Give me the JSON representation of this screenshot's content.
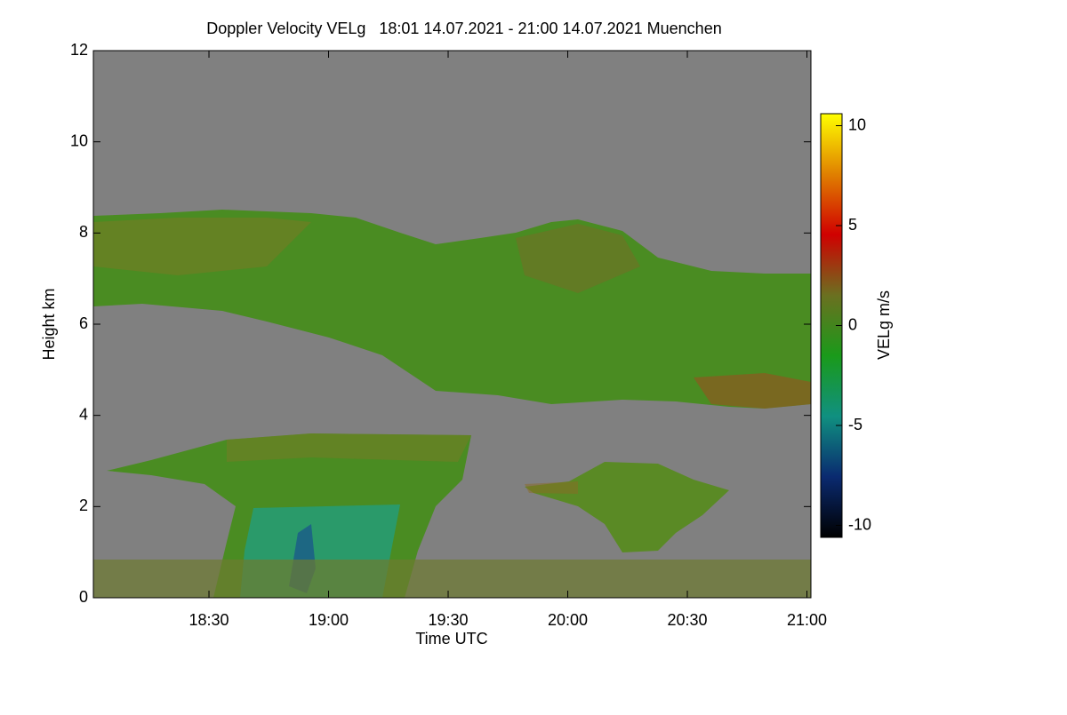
{
  "chart_data": {
    "type": "heatmap",
    "title": "Doppler Velocity VELg   18:01 14.07.2021 - 21:00 14.07.2021 Muenchen",
    "x_label": "Time UTC",
    "y_label": "Height km",
    "colorbar_label": "VELg m/s",
    "xlim": [
      1081,
      1261
    ],
    "xticks": [
      {
        "value": 1110,
        "label": "18:30"
      },
      {
        "value": 1140,
        "label": "19:00"
      },
      {
        "value": 1170,
        "label": "19:30"
      },
      {
        "value": 1200,
        "label": "20:00"
      },
      {
        "value": 1230,
        "label": "20:30"
      },
      {
        "value": 1260,
        "label": "21:00"
      }
    ],
    "ylim": [
      0,
      12
    ],
    "yticks": [
      0,
      2,
      4,
      6,
      8,
      10,
      12
    ],
    "clim": [
      -10.6,
      10.6
    ],
    "cticks": [
      -10,
      -5,
      0,
      5,
      10
    ],
    "colormap": [
      "#000000",
      "#0a2a70",
      "#109080",
      "#1a9a1a",
      "#6b7020",
      "#d00000",
      "#e08000",
      "#ffff00"
    ],
    "background": "#808080"
  }
}
